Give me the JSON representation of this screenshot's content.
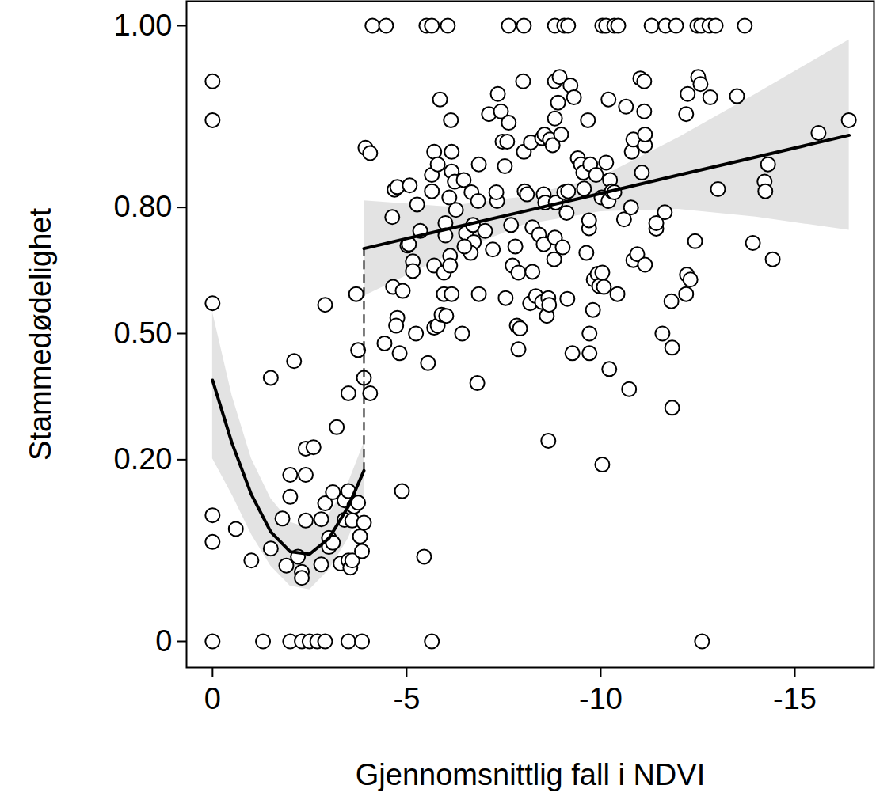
{
  "chart_data": {
    "type": "scatter",
    "x_label": "Gjennomsnittlig fall i NDVI",
    "y_label": "Stammedødelighet",
    "xlim": [
      0.67,
      -17.04
    ],
    "xticks": [
      0,
      -5,
      -10,
      -15
    ],
    "ylim": [
      0,
      1
    ],
    "yticks": [
      0,
      {
        "value": 0.2,
        "label": "0.20"
      },
      {
        "value": 0.5,
        "label": "0.50"
      },
      {
        "value": 0.8,
        "label": "0.80"
      },
      {
        "value": 1,
        "label": "1.00"
      }
    ],
    "grid": false,
    "series": [
      {
        "type": "scatter",
        "marker": "circle",
        "color": "#000000",
        "x": [
          0,
          0,
          0,
          0,
          0,
          0,
          -0.6,
          -1.0,
          -1.3,
          -1.5,
          -1.5,
          -1.8,
          -1.9,
          -2.0,
          -2.0,
          -2.0,
          -2.1,
          -2.2,
          -2.3,
          -2.3,
          -2.3,
          -2.4,
          -2.4,
          -2.4,
          -2.5,
          -2.6,
          -2.7,
          -2.8,
          -2.8,
          -2.9,
          -2.9,
          -2.9,
          -3.0,
          -3.0,
          -3.1,
          -3.1,
          -3.2,
          -3.3,
          -3.4,
          -3.4,
          -3.5,
          -3.5,
          -3.5,
          -3.5,
          -3.55,
          -3.6,
          -3.6,
          -3.65,
          -3.7,
          -3.75,
          -3.75,
          -3.8,
          -3.85,
          -3.85,
          -3.9,
          -3.9,
          -3.94,
          -4.06,
          -4.06,
          -4.12,
          -4.47,
          -5.51,
          -5.65,
          -6.06,
          -7.63,
          -8.02,
          -8.82,
          -9.06,
          -9.16,
          -10.04,
          -10.14,
          -10.35,
          -10.45,
          -11.31,
          -11.67,
          -11.94,
          -12.49,
          -12.59,
          -12.8,
          -12.96,
          -13.71,
          -5.65,
          -12.61,
          -4.69,
          -4.63,
          -4.76,
          -5.08,
          -5.02,
          -5.06,
          -5.16,
          -5.16,
          -5.27,
          -5.35,
          -5.65,
          -5.65,
          -5.71,
          -5.8,
          -5.71,
          -5.71,
          -5.8,
          -5.9,
          -5.96,
          -5.96,
          -6.0,
          -6.0,
          -6.1,
          -6.16,
          -6.16,
          -6.14,
          -5.86,
          -6.24,
          -6.27,
          -6.12,
          -6.12,
          -6.16,
          -6.43,
          -6.47,
          -6.53,
          -6.67,
          -6.71,
          -6.86,
          -6.84,
          -6.82,
          -6.86,
          -6.73,
          -7.12,
          -7.02,
          -7.22,
          -7.33,
          -7.31,
          -7.35,
          -7.43,
          -7.47,
          -7.53,
          -7.59,
          -7.63,
          -7.55,
          -7.69,
          -7.73,
          -7.8,
          -7.84,
          -7.88,
          -7.88,
          -7.92,
          -8.0,
          -8.02,
          -8.04,
          -8.1,
          -8.2,
          -8.24,
          -8.18,
          -8.24,
          -8.33,
          -8.41,
          -8.49,
          -8.49,
          -8.53,
          -8.55,
          -8.53,
          -8.57,
          -8.61,
          -8.65,
          -8.69,
          -8.67,
          -8.76,
          -8.8,
          -8.82,
          -8.84,
          -8.82,
          -8.82,
          -8.9,
          -8.94,
          -8.98,
          -9.02,
          -9.06,
          -9.12,
          -9.14,
          -9.16,
          -9.22,
          -9.27,
          -9.31,
          -9.41,
          -9.49,
          -9.55,
          -9.57,
          -9.63,
          -9.67,
          -9.7,
          -9.7,
          -9.73,
          -9.71,
          -9.71,
          -9.8,
          -9.82,
          -9.88,
          -9.92,
          -9.96,
          -10.02,
          -10.04,
          -10.08,
          -10.14,
          -10.2,
          -10.22,
          -10.2,
          -10.24,
          -10.29,
          -10.35,
          -10.43,
          -10.6,
          -10.65,
          -10.73,
          -10.78,
          -10.8,
          -10.84,
          -10.84,
          -10.94,
          -11.02,
          -11.06,
          -11.12,
          -11.12,
          -11.14,
          -11.14,
          -11.14,
          -11.59,
          -11.65,
          -11.43,
          -11.43,
          -11.82,
          -11.84,
          -11.84,
          -12.2,
          -12.2,
          -12.24,
          -12.22,
          -12.31,
          -12.43,
          -12.51,
          -12.57,
          -12.82,
          -13.02,
          -13.51,
          -13.92,
          -14.22,
          -14.24,
          -14.31,
          -14.43,
          -15.61,
          -16.39,
          -8.65,
          -10.04,
          -5.45,
          -4.88,
          -4.82,
          -4.76,
          -4.73,
          -4.65,
          -4.43,
          -4.9,
          -5.55,
          -5.24,
          -6.02,
          -6.65,
          -6.49
        ],
        "values": [
          0.98,
          0.943,
          0.577,
          0.1,
          0.063,
          0,
          0.08,
          0.042,
          0,
          0.388,
          0.055,
          0.095,
          0.037,
          0.17,
          0.13,
          0,
          0.43,
          0.046,
          0.031,
          0.026,
          0,
          0.17,
          0.223,
          0.092,
          0,
          0.226,
          0,
          0.094,
          0.038,
          0,
          0.119,
          0.573,
          0.068,
          0.057,
          0.138,
          0.062,
          0.27,
          0.039,
          0.124,
          0.093,
          0,
          0.042,
          0.14,
          0.35,
          0.035,
          0.042,
          0.092,
          0.114,
          0.6,
          0.458,
          0.12,
          0.07,
          0,
          0.052,
          0.388,
          0.089,
          0.906,
          0.898,
          0.35,
          1,
          1,
          1,
          1,
          1,
          1,
          1,
          1,
          1,
          1,
          1,
          1,
          1,
          1,
          1,
          1,
          1,
          1,
          1,
          1,
          1,
          1,
          0,
          0,
          0.835,
          0.78,
          0.84,
          0.843,
          0.717,
          0.72,
          0.68,
          0.657,
          0.806,
          0.75,
          0.832,
          0.862,
          0.9,
          0.88,
          0.67,
          0.515,
          0.52,
          0.548,
          0.6,
          0.653,
          0.767,
          0.74,
          0.82,
          0.868,
          0.9,
          0.943,
          0.965,
          0.85,
          0.795,
          0.693,
          0.67,
          0.6,
          0.5,
          0.853,
          0.745,
          0.83,
          0.763,
          0.88,
          0.813,
          0.375,
          0.6,
          0.725,
          0.95,
          0.75,
          0.708,
          0.813,
          0.83,
          0.97,
          0.953,
          0.915,
          0.877,
          0.915,
          0.94,
          0.59,
          0.763,
          0.67,
          0.715,
          0.52,
          0.46,
          0.653,
          0.513,
          0.98,
          0.9,
          0.832,
          0.826,
          0.914,
          0.655,
          0.577,
          0.758,
          0.595,
          0.742,
          0.58,
          0.92,
          0.826,
          0.925,
          0.72,
          0.81,
          0.545,
          0.59,
          0.918,
          0.573,
          0.91,
          0.685,
          0.735,
          0.81,
          0.945,
          0.98,
          0.962,
          0.983,
          0.925,
          0.713,
          0.83,
          0.789,
          0.588,
          0.832,
          0.977,
          0.45,
          0.967,
          0.89,
          0.88,
          0.866,
          0.837,
          0.7,
          0.943,
          0.756,
          0.773,
          0.88,
          0.5,
          0.45,
          0.56,
          0.636,
          0.862,
          0.65,
          0.62,
          0.82,
          0.653,
          0.618,
          0.883,
          0.965,
          0.41,
          0.813,
          0.853,
          0.832,
          0.83,
          0.6,
          0.775,
          0.958,
          0.36,
          0.8,
          0.9,
          0.918,
          0.683,
          0.697,
          0.982,
          0.866,
          0.98,
          0.953,
          0.91,
          0.925,
          0.672,
          0.5,
          0.79,
          0.755,
          0.767,
          0.582,
          0.464,
          0.315,
          0.95,
          0.6,
          0.97,
          0.648,
          0.636,
          0.727,
          0.983,
          0.978,
          0.967,
          0.836,
          0.968,
          0.723,
          0.85,
          0.832,
          0.88,
          0.685,
          0.927,
          0.943,
          0.24,
          0.19,
          0.046,
          0.14,
          0.45,
          0.54,
          0.52,
          0.618,
          0.475,
          0.608,
          0.425,
          0.5,
          0.545,
          0.7,
          0.715
        ]
      },
      {
        "type": "line",
        "line_style": "solid",
        "color": "#000000",
        "x": [
          0,
          -0.5,
          -1,
          -1.5,
          -2,
          -2.5,
          -3,
          -3.5,
          -3.9
        ],
        "values": [
          0.382,
          0.235,
          0.134,
          0.076,
          0.0515,
          0.0488,
          0.0676,
          0.114,
          0.178
        ],
        "lower": [
          0.202,
          0.134,
          0.0727,
          0.0365,
          0.0199,
          0.0172,
          0.0328,
          0.0676,
          0.127
        ],
        "upper": [
          0.555,
          0.345,
          0.202,
          0.127,
          0.0894,
          0.0804,
          0.101,
          0.155,
          0.235
        ]
      },
      {
        "type": "line",
        "line_style": "solid",
        "color": "#000000",
        "x": [
          -3.9,
          -6,
          -8,
          -10,
          -12,
          -14,
          -16.4
        ],
        "values": [
          0.71,
          0.7533,
          0.7914,
          0.8277,
          0.8616,
          0.8919,
          0.9239
        ],
        "lower": [
          0.5947,
          0.6908,
          0.7629,
          0.7914,
          0.7962,
          0.7802,
          0.7513
        ],
        "upper": [
          0.8134,
          0.8016,
          0.8209,
          0.8578,
          0.9205,
          0.97,
          0.9987
        ]
      },
      {
        "type": "line",
        "line_style": "dashed",
        "color": "#000000",
        "x": [
          -3.9,
          -3.9
        ],
        "values": [
          0.178,
          0.71
        ]
      }
    ]
  }
}
